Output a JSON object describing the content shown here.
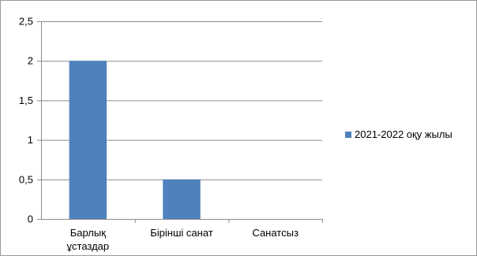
{
  "chart_data": {
    "type": "bar",
    "categories": [
      "Барлық\nұстаздар",
      "Бірінші санат",
      "Санатсыз"
    ],
    "series": [
      {
        "name": "2021-2022 оқу жылы",
        "values": [
          2,
          0.5,
          0
        ],
        "color": "#4f81bd"
      }
    ],
    "ylim": [
      0,
      2.5
    ],
    "y_ticks": [
      0,
      0.5,
      1,
      1.5,
      2,
      2.5
    ],
    "y_tick_labels": [
      "0",
      "0,5",
      "1",
      "1,5",
      "2",
      "2,5"
    ],
    "grid": true,
    "legend_position": "right",
    "title": "",
    "xlabel": "",
    "ylabel": ""
  }
}
